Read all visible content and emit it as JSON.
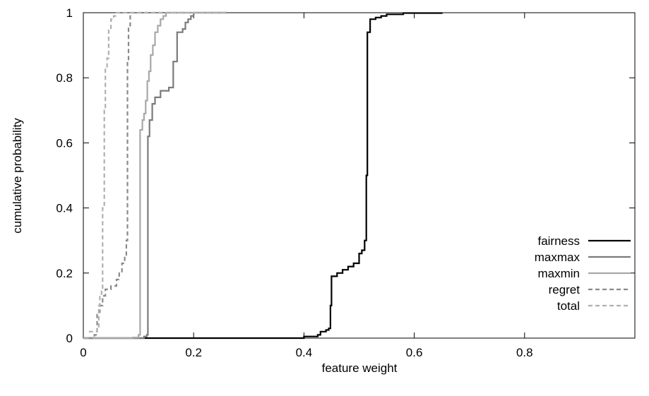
{
  "chart_data": {
    "type": "line",
    "title": "",
    "xlabel": "feature weight",
    "ylabel": "cumulative probability",
    "xlim": [
      0,
      1
    ],
    "ylim": [
      0,
      1
    ],
    "x_ticks": [
      0,
      0.2,
      0.4,
      0.6,
      0.8
    ],
    "x_tick_labels": [
      "0",
      "0.2",
      "0.4",
      "0.6",
      "0.8"
    ],
    "y_ticks": [
      0,
      0.2,
      0.4,
      0.6,
      0.8,
      1
    ],
    "y_tick_labels": [
      "0",
      "0.2",
      "0.4",
      "0.6",
      "0.8",
      "1"
    ],
    "grid": false,
    "legend_position": "bottom-right",
    "series": [
      {
        "name": "fairness",
        "color": "#000000",
        "dash": "solid",
        "points": [
          [
            0.0,
            0.0
          ],
          [
            0.38,
            0.0
          ],
          [
            0.4,
            0.005
          ],
          [
            0.425,
            0.01
          ],
          [
            0.43,
            0.02
          ],
          [
            0.44,
            0.025
          ],
          [
            0.445,
            0.03
          ],
          [
            0.448,
            0.1
          ],
          [
            0.45,
            0.19
          ],
          [
            0.46,
            0.2
          ],
          [
            0.47,
            0.21
          ],
          [
            0.48,
            0.22
          ],
          [
            0.49,
            0.23
          ],
          [
            0.5,
            0.26
          ],
          [
            0.505,
            0.27
          ],
          [
            0.51,
            0.3
          ],
          [
            0.513,
            0.5
          ],
          [
            0.515,
            0.94
          ],
          [
            0.52,
            0.98
          ],
          [
            0.53,
            0.985
          ],
          [
            0.54,
            0.99
          ],
          [
            0.55,
            0.995
          ],
          [
            0.58,
            0.999
          ],
          [
            0.65,
            1.0
          ]
        ]
      },
      {
        "name": "maxmax",
        "color": "#7a7a7a",
        "dash": "solid",
        "points": [
          [
            0.0,
            0.0
          ],
          [
            0.09,
            0.0
          ],
          [
            0.11,
            0.005
          ],
          [
            0.115,
            0.01
          ],
          [
            0.117,
            0.62
          ],
          [
            0.12,
            0.67
          ],
          [
            0.125,
            0.72
          ],
          [
            0.13,
            0.74
          ],
          [
            0.14,
            0.76
          ],
          [
            0.155,
            0.77
          ],
          [
            0.163,
            0.85
          ],
          [
            0.17,
            0.94
          ],
          [
            0.18,
            0.95
          ],
          [
            0.185,
            0.97
          ],
          [
            0.19,
            0.98
          ],
          [
            0.195,
            0.99
          ],
          [
            0.2,
            1.0
          ],
          [
            0.26,
            1.0
          ]
        ]
      },
      {
        "name": "maxmin",
        "color": "#a8a8a8",
        "dash": "solid",
        "points": [
          [
            0.0,
            0.0
          ],
          [
            0.07,
            0.0
          ],
          [
            0.09,
            0.002
          ],
          [
            0.1,
            0.01
          ],
          [
            0.103,
            0.64
          ],
          [
            0.107,
            0.67
          ],
          [
            0.11,
            0.69
          ],
          [
            0.113,
            0.73
          ],
          [
            0.116,
            0.79
          ],
          [
            0.119,
            0.82
          ],
          [
            0.122,
            0.87
          ],
          [
            0.126,
            0.9
          ],
          [
            0.13,
            0.94
          ],
          [
            0.135,
            0.96
          ],
          [
            0.14,
            0.98
          ],
          [
            0.145,
            0.99
          ],
          [
            0.15,
            1.0
          ],
          [
            0.26,
            1.0
          ]
        ]
      },
      {
        "name": "regret",
        "color": "#8a8a8a",
        "dash": "dashed",
        "points": [
          [
            0.01,
            0.0
          ],
          [
            0.02,
            0.01
          ],
          [
            0.025,
            0.08
          ],
          [
            0.03,
            0.1
          ],
          [
            0.035,
            0.13
          ],
          [
            0.04,
            0.15
          ],
          [
            0.05,
            0.16
          ],
          [
            0.06,
            0.18
          ],
          [
            0.065,
            0.2
          ],
          [
            0.07,
            0.23
          ],
          [
            0.075,
            0.25
          ],
          [
            0.078,
            0.3
          ],
          [
            0.08,
            0.85
          ],
          [
            0.082,
            0.96
          ],
          [
            0.085,
            1.0
          ],
          [
            0.26,
            1.0
          ]
        ]
      },
      {
        "name": "total",
        "color": "#b0b0b0",
        "dash": "dashed",
        "points": [
          [
            0.01,
            0.02
          ],
          [
            0.02,
            0.02
          ],
          [
            0.025,
            0.03
          ],
          [
            0.028,
            0.1
          ],
          [
            0.03,
            0.13
          ],
          [
            0.033,
            0.15
          ],
          [
            0.035,
            0.4
          ],
          [
            0.038,
            0.7
          ],
          [
            0.04,
            0.83
          ],
          [
            0.043,
            0.86
          ],
          [
            0.046,
            0.95
          ],
          [
            0.05,
            0.98
          ],
          [
            0.055,
            0.99
          ],
          [
            0.06,
            1.0
          ],
          [
            0.26,
            1.0
          ]
        ]
      }
    ]
  }
}
